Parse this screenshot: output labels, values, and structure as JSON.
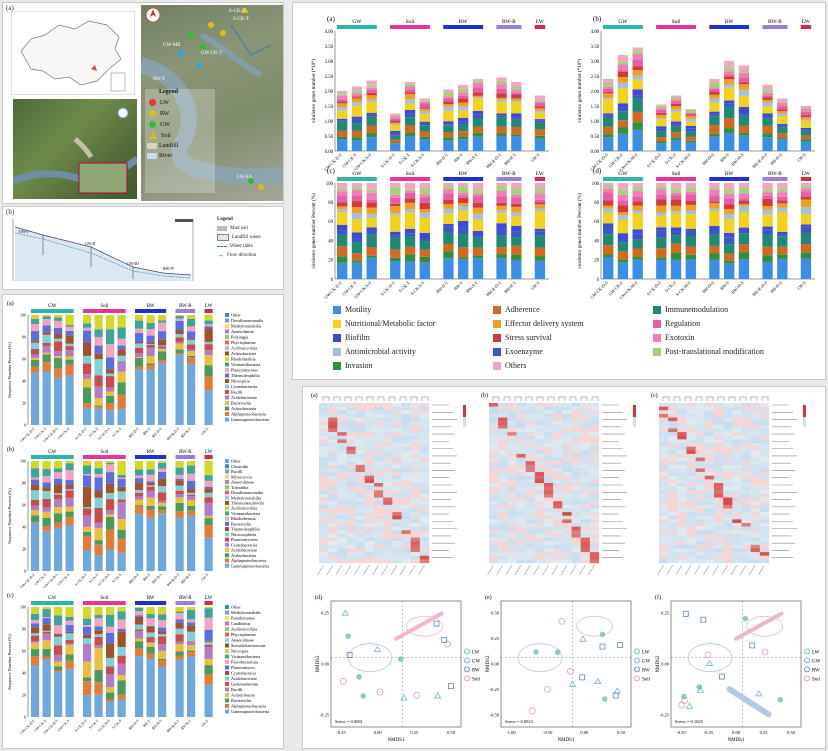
{
  "colors": {
    "gw": "#2ab7a9",
    "soil": "#e6359a",
    "rw": "#1f2fd0",
    "rwr": "#9a7fd8",
    "lw": "#d6264c",
    "motility": "#3b8ee6",
    "nutritional": "#f2d21b",
    "biofilm": "#3d4ad8",
    "antimicrobial": "#a6c1d6",
    "invasion": "#2f8f3a",
    "adherence": "#d2691e",
    "effector": "#f0a020",
    "stress": "#d43a3a",
    "exoenzyme": "#3a56c8",
    "others": "#f2a6c0",
    "immune": "#1f8a73",
    "regulation": "#e75ea8",
    "exotoxin": "#f37db8",
    "posttrans": "#a4d17a"
  },
  "map": {
    "panel_label": "(a)",
    "legend_title": "Legend",
    "legend_items": [
      "LW",
      "RW",
      "GW",
      "Soil",
      "Landfill",
      "River"
    ],
    "site_labels": [
      "S-CK-D",
      "S-CK-T",
      "S-AT",
      "GW-MB",
      "GW-CK-T",
      "RW-I",
      "GW-KT",
      "RW-T",
      "RW-R-D",
      "LW-SA",
      "S-CK-A",
      "RW-MB-D"
    ],
    "compass": "N"
  },
  "profile": {
    "panel_label": "(b)",
    "legend_title": "Legend",
    "legend_items": [
      "Mud soil",
      "Landfill waste",
      "Water table",
      "Flow direction"
    ],
    "points": [
      "GW-I",
      "GW-II",
      "GW-III",
      "RW-IV"
    ]
  },
  "groups": [
    "GW",
    "Soil",
    "RW",
    "RW-R",
    "LW"
  ],
  "composition": {
    "panels": [
      {
        "label": "(a)",
        "ylabel": "Sequence Number Percent (%)",
        "legend": [
          "Other",
          "Desulfuromonadia",
          "Methylomirabilia",
          "Anaerolineae",
          "Polyangia",
          "Phycisphaerae",
          "Acidimicrobiia",
          "Actinobacteria",
          "Rhodothermia",
          "Vicinamibacteria",
          "Planctomycetes",
          "Thermoleophilia",
          "Nitrospiria",
          "Cyanobacteriia",
          "Bacilli",
          "Acidobacteriae",
          "Bacteroidia",
          "Actinobacteria",
          "Alphaproteobacteria",
          "Gammaproteobacteria"
        ]
      },
      {
        "label": "(b)",
        "ylabel": "Sequence Number Percent (%)",
        "legend": [
          "Other",
          "Clostridia",
          "Bacilli",
          "Myxococcia",
          "Anaerolineae",
          "Tolerablia",
          "Desulfuromonadia",
          "Methylomirabilia",
          "Thermodesulfovibr",
          "Acidimicrobiia",
          "Vicinamibacteria",
          "Rhodothermia",
          "Bacteroidia",
          "Thermoleophilia",
          "Nitrosospheria",
          "Planctomycetes",
          "Cyanobacteriia",
          "Acidobacteriae",
          "Actinobacteria",
          "Alphaproteobacteria",
          "Gammaproteobacteria"
        ]
      },
      {
        "label": "(c)",
        "ylabel": "Sequence Number Percent (%)",
        "legend": [
          "Other",
          "Methylomirabilis",
          "Pseudomonas",
          "Candidatus",
          "Acidimicrobiia",
          "Phycisphaerae",
          "Anaerolineae",
          "Steroidobacteraceae",
          "Nitrospira",
          "Vicinamibacteria",
          "Flavobacterium",
          "Planctomyces",
          "Cyanobacteria",
          "Acidobacteriae",
          "Gemmatimonas",
          "Bacilli",
          "Acinetobacter",
          "Bacteroides",
          "Alphaproteobacteria",
          "Gammaproteobacteria"
        ]
      }
    ],
    "xlabels": [
      "GW-CK-D-T",
      "GW-CK-T",
      "GW-CK-D-S",
      "GW-CK-S",
      "S-CK-D-T",
      "S-CK-T",
      "S-CK-D-S",
      "S-CK-S",
      "RW-D-T",
      "RW-T",
      "RW-D-S",
      "RW-R-D-T",
      "RW-R-T",
      "LW-T"
    ]
  },
  "vf": {
    "panels": [
      {
        "label": "(a)",
        "ylabel": "virulence genes number (*10⁴)",
        "yticks": [
          "0.00",
          "0.50",
          "1.00",
          "1.50",
          "2.00",
          "2.50",
          "3.00",
          "3.50",
          "4.00"
        ]
      },
      {
        "label": "(b)",
        "ylabel": "virulence genes number (*10⁴)",
        "yticks": [
          "0.00",
          "0.50",
          "1.00",
          "1.50",
          "2.00",
          "2.50",
          "3.00",
          "3.50",
          "4.00"
        ]
      },
      {
        "label": "(c)",
        "ylabel": "virulence genes number Percent (%)",
        "yticks": [
          "0",
          "20",
          "40",
          "60",
          "80",
          "100"
        ]
      },
      {
        "label": "(d)",
        "ylabel": "virulence genes number Percent (%)",
        "yticks": [
          "0",
          "20",
          "40",
          "60",
          "80",
          "100"
        ]
      }
    ],
    "xlabels_ad": [
      "GW-CK-D-T",
      "GW-CK-T",
      "GW-CK-S-T",
      "S-CK-D-T",
      "S-CK-T",
      "S-CK-S-T",
      "RW-D-T",
      "RW-T",
      "RW-S-T",
      "RW-R-D-T",
      "RW-R-T",
      "LW-T"
    ],
    "xlabels_bd": [
      "GW-CK-D-S",
      "GW-CK-S",
      "GW-CK-M-S",
      "S-CK-D-S",
      "S-CK-S",
      "S-CK-M-S",
      "RW-D-S",
      "RW-S",
      "RW-M-S",
      "RW-R-D-S",
      "RW-R-S",
      "LW-S"
    ],
    "legend": [
      {
        "name": "Motility",
        "key": "motility"
      },
      {
        "name": "Adherence",
        "key": "adherence"
      },
      {
        "name": "Immunemodulation",
        "key": "immune"
      },
      {
        "name": "Nutritional/Metabolic factor",
        "key": "nutritional"
      },
      {
        "name": "Effector delivery system",
        "key": "effector"
      },
      {
        "name": "Regulation",
        "key": "regulation"
      },
      {
        "name": "Biofilm",
        "key": "biofilm"
      },
      {
        "name": "Stress survival",
        "key": "stress"
      },
      {
        "name": "Exotoxin",
        "key": "exotoxin"
      },
      {
        "name": "Antimicrobial activity",
        "key": "antimicrobial"
      },
      {
        "name": "Exoenzyme",
        "key": "exoenzyme"
      },
      {
        "name": "Post-translational modification",
        "key": "posttrans"
      },
      {
        "name": "Invasion",
        "key": "invasion"
      },
      {
        "name": "Others",
        "key": "others"
      }
    ]
  },
  "heatmaps": {
    "labels": [
      "(a)",
      "(b)",
      "(c)"
    ]
  },
  "nmds": {
    "panels": [
      {
        "label": "(d)",
        "stress": "Stress = 0.0681",
        "xlabel": "NMDS1",
        "ylabel": "NMDS2",
        "xticks": [
          "-0.25",
          "0.00",
          "0.25",
          "0.50"
        ],
        "yticks": [
          "0.25",
          "0.00",
          "-0.25"
        ]
      },
      {
        "label": "(e)",
        "stress": "Stress = 0.0923",
        "xlabel": "NMDS1",
        "ylabel": "NMDS2",
        "xticks": [
          "-1.00",
          "-0.50",
          "0.00",
          "0.50"
        ],
        "yticks": [
          "0.50",
          "0.25",
          "0.00",
          "-0.25",
          "-0.50"
        ]
      },
      {
        "label": "(f)",
        "stress": "Stress = 0.1025",
        "xlabel": "NMDS1",
        "ylabel": "NMDS2",
        "xticks": [
          "-0.50",
          "-0.25",
          "0.00",
          "0.25",
          "0.50"
        ],
        "yticks": [
          "0.25",
          "0.00",
          "-0.25"
        ]
      }
    ],
    "legend": [
      "LW",
      "GW",
      "RW",
      "Soil"
    ]
  }
}
